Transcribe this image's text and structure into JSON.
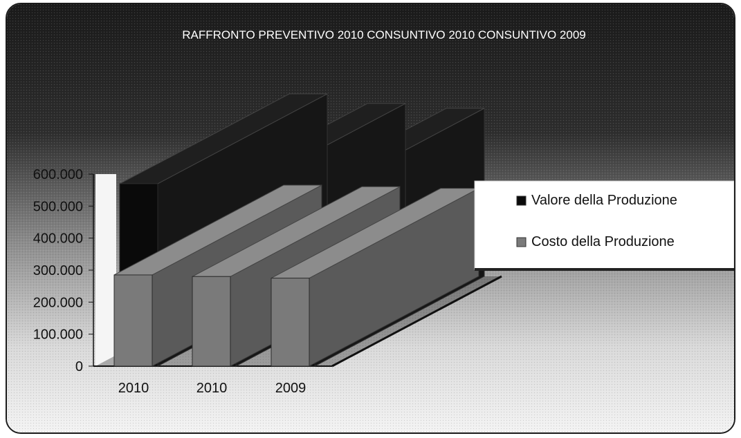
{
  "chart_data": {
    "type": "bar",
    "title": "RAFFRONTO PREVENTIVO 2010 CONSUNTIVO 2010 CONSUNTIVO 2009",
    "categories": [
      "2010",
      "2010",
      "2009"
    ],
    "series": [
      {
        "name": "Valore della Produzione",
        "values": [
          570000,
          540000,
          525000
        ],
        "color": "#0a0a0a"
      },
      {
        "name": "Costo della Produzione",
        "values": [
          285000,
          280000,
          275000
        ],
        "color": "#7a7a7a"
      }
    ],
    "yticks": [
      "0",
      "100.000",
      "200.000",
      "300.000",
      "400.000",
      "500.000",
      "600.000"
    ],
    "ylim": [
      0,
      600000
    ],
    "legend_position": "right",
    "grid": false,
    "style": "3d-column"
  }
}
